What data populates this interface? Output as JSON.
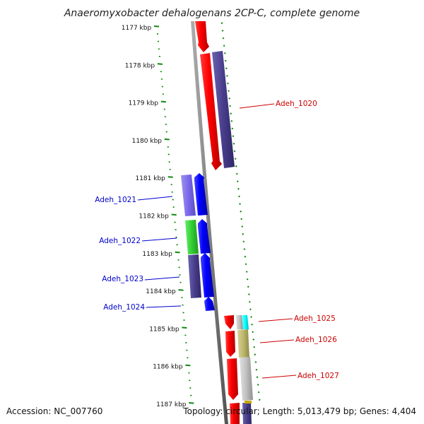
{
  "title": "Anaeromyxobacter dehalogenans 2CP-C, complete genome",
  "accession": "Accession: NC_007760",
  "topology": "Topology: circular; Length: 5,013,479 bp; Genes: 4,404",
  "ticks": [
    "1177 kbp",
    "1178 kbp",
    "1179 kbp",
    "1180 kbp",
    "1181 kbp",
    "1182 kbp",
    "1183 kbp",
    "1184 kbp",
    "1185 kbp",
    "1186 kbp",
    "1187 kbp"
  ],
  "genes": [
    {
      "label": "Adeh_1020",
      "strand": "forward"
    },
    {
      "label": "Adeh_1021",
      "strand": "reverse"
    },
    {
      "label": "Adeh_1022",
      "strand": "reverse"
    },
    {
      "label": "Adeh_1023",
      "strand": "reverse"
    },
    {
      "label": "Adeh_1024",
      "strand": "reverse"
    },
    {
      "label": "Adeh_1025",
      "strand": "forward"
    },
    {
      "label": "Adeh_1026",
      "strand": "forward"
    },
    {
      "label": "Adeh_1027",
      "strand": "forward"
    }
  ],
  "colors": {
    "backbone": "#808080",
    "ticks": "#118811",
    "cds_forward": "#ff0000",
    "cds_reverse": "#0000ff",
    "label_forward": "#cc0000",
    "label_reverse": "#0000cc"
  }
}
